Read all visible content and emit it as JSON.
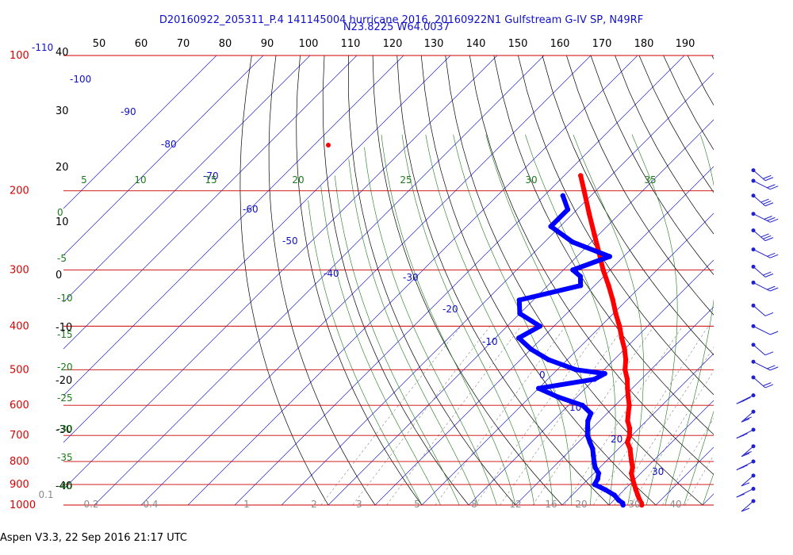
{
  "title_line1": "D20160922_205311_P.4 141145004 hurricane 2016, 20160922N1 Gulfstream G-IV SP, N49RF",
  "title_line2": "N23.8225 W64.0037",
  "footer": "Aspen V3.3, 22 Sep 2016  21:17 UTC",
  "colors": {
    "temperature": "#ff0000",
    "dewpoint": "#0000ff",
    "isobar": "#cc0000",
    "isotherm": "#2222cc",
    "dry_adiabat": "#000000",
    "moist_adiabat": "#1a7a1a",
    "mixing_ratio": "#888888",
    "wind_barb": "#2222cc"
  },
  "chart_data": {
    "type": "skew-t",
    "pressure_levels": [
      "100",
      "200",
      "300",
      "400",
      "500",
      "600",
      "700",
      "800",
      "900",
      "1000"
    ],
    "top_scale": [
      "50",
      "60",
      "70",
      "80",
      "90",
      "100",
      "110",
      "120",
      "130",
      "140",
      "150",
      "160",
      "170",
      "180",
      "190"
    ],
    "left_black_scale": [
      "40",
      "30",
      "20",
      "10",
      "0",
      "-10",
      "-20",
      "-30",
      "-40"
    ],
    "isotherm_labels": [
      "-110",
      "-100",
      "-90",
      "-80",
      "-70",
      "-60",
      "-50",
      "-40",
      "-30",
      "-20",
      "-10",
      "0",
      "10",
      "20",
      "30"
    ],
    "moist_labels_top": [
      "5",
      "10",
      "15",
      "20",
      "25",
      "30",
      "35"
    ],
    "moist_labels_left": [
      "0",
      "-5",
      "-10",
      "-15",
      "-20",
      "-25",
      "-30",
      "-35",
      "-40"
    ],
    "mixing_ratio_labels": [
      "0.1",
      "0.2",
      "0.4",
      "1",
      "2",
      "3",
      "5",
      "8",
      "12",
      "16",
      "20",
      "30",
      "40"
    ],
    "temperature_profile": [
      {
        "p": 1000,
        "t": 27
      },
      {
        "p": 990,
        "t": 26.5
      },
      {
        "p": 975,
        "t": 25.5
      },
      {
        "p": 950,
        "t": 24
      },
      {
        "p": 925,
        "t": 22.5
      },
      {
        "p": 900,
        "t": 21
      },
      {
        "p": 875,
        "t": 19.5
      },
      {
        "p": 850,
        "t": 18
      },
      {
        "p": 825,
        "t": 17
      },
      {
        "p": 800,
        "t": 15.5
      },
      {
        "p": 775,
        "t": 14
      },
      {
        "p": 750,
        "t": 12.5
      },
      {
        "p": 725,
        "t": 10.5
      },
      {
        "p": 700,
        "t": 9.5
      },
      {
        "p": 675,
        "t": 8
      },
      {
        "p": 650,
        "t": 6
      },
      {
        "p": 625,
        "t": 4.5
      },
      {
        "p": 600,
        "t": 3
      },
      {
        "p": 575,
        "t": 1
      },
      {
        "p": 550,
        "t": -1
      },
      {
        "p": 525,
        "t": -3
      },
      {
        "p": 500,
        "t": -5.5
      },
      {
        "p": 475,
        "t": -7.5
      },
      {
        "p": 450,
        "t": -10
      },
      {
        "p": 425,
        "t": -13
      },
      {
        "p": 400,
        "t": -16
      },
      {
        "p": 375,
        "t": -19.5
      },
      {
        "p": 350,
        "t": -23
      },
      {
        "p": 325,
        "t": -27
      },
      {
        "p": 300,
        "t": -31.5
      },
      {
        "p": 275,
        "t": -36
      },
      {
        "p": 250,
        "t": -41
      },
      {
        "p": 225,
        "t": -46.5
      },
      {
        "p": 200,
        "t": -52.5
      },
      {
        "p": 185,
        "t": -56.5
      }
    ],
    "dewpoint_profile": [
      {
        "p": 1000,
        "t": 23
      },
      {
        "p": 990,
        "t": 22.5
      },
      {
        "p": 975,
        "t": 21
      },
      {
        "p": 950,
        "t": 19
      },
      {
        "p": 925,
        "t": 16
      },
      {
        "p": 900,
        "t": 12.5
      },
      {
        "p": 875,
        "t": 12
      },
      {
        "p": 850,
        "t": 11
      },
      {
        "p": 825,
        "t": 9
      },
      {
        "p": 800,
        "t": 7.5
      },
      {
        "p": 775,
        "t": 6
      },
      {
        "p": 750,
        "t": 4.5
      },
      {
        "p": 725,
        "t": 2.5
      },
      {
        "p": 700,
        "t": 0.5
      },
      {
        "p": 675,
        "t": -1
      },
      {
        "p": 650,
        "t": -2.5
      },
      {
        "p": 625,
        "t": -3.5
      },
      {
        "p": 600,
        "t": -7
      },
      {
        "p": 575,
        "t": -14
      },
      {
        "p": 550,
        "t": -20
      },
      {
        "p": 525,
        "t": -10
      },
      {
        "p": 510,
        "t": -9
      },
      {
        "p": 500,
        "t": -16
      },
      {
        "p": 475,
        "t": -24
      },
      {
        "p": 450,
        "t": -30
      },
      {
        "p": 425,
        "t": -35
      },
      {
        "p": 400,
        "t": -33
      },
      {
        "p": 375,
        "t": -40
      },
      {
        "p": 350,
        "t": -43
      },
      {
        "p": 325,
        "t": -33
      },
      {
        "p": 310,
        "t": -35
      },
      {
        "p": 300,
        "t": -38
      },
      {
        "p": 280,
        "t": -33
      },
      {
        "p": 260,
        "t": -44
      },
      {
        "p": 240,
        "t": -52
      },
      {
        "p": 220,
        "t": -52
      },
      {
        "p": 205,
        "t": -56
      }
    ],
    "wind_barbs": [
      {
        "p": 180,
        "speed": 15
      },
      {
        "p": 190,
        "speed": 15
      },
      {
        "p": 205,
        "speed": 25
      },
      {
        "p": 225,
        "speed": 25
      },
      {
        "p": 245,
        "speed": 25
      },
      {
        "p": 270,
        "speed": 20
      },
      {
        "p": 295,
        "speed": 20
      },
      {
        "p": 320,
        "speed": 15
      },
      {
        "p": 360,
        "speed": 10
      },
      {
        "p": 400,
        "speed": 5
      },
      {
        "p": 440,
        "speed": 10
      },
      {
        "p": 480,
        "speed": 15
      },
      {
        "p": 520,
        "speed": 20
      },
      {
        "p": 570,
        "speed": 25
      },
      {
        "p": 620,
        "speed": 20
      },
      {
        "p": 680,
        "speed": 15
      },
      {
        "p": 740,
        "speed": 15
      },
      {
        "p": 800,
        "speed": 15
      },
      {
        "p": 860,
        "speed": 10
      },
      {
        "p": 920,
        "speed": 10
      },
      {
        "p": 980,
        "speed": 5
      }
    ]
  }
}
